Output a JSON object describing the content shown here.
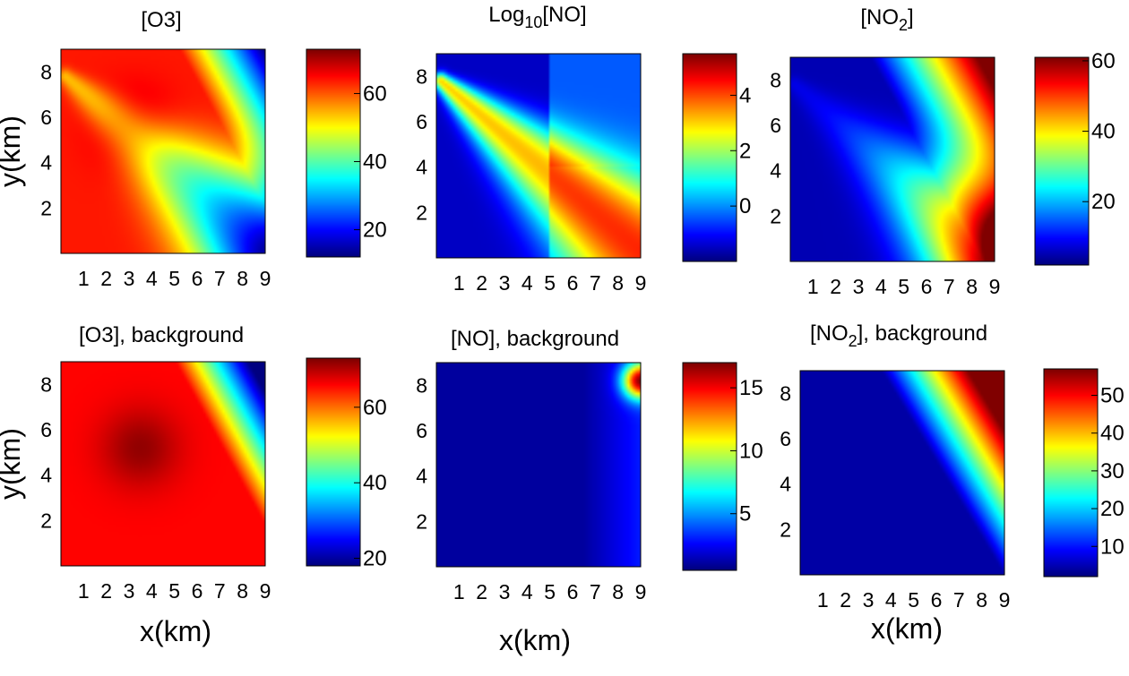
{
  "chart_data": [
    {
      "type": "heatmap",
      "title": "[O3]",
      "colormap": "jet",
      "xlim": [
        0,
        9
      ],
      "ylim": [
        0,
        9
      ],
      "xticks": [
        1,
        2,
        3,
        4,
        5,
        6,
        7,
        8,
        9
      ],
      "yticks": [
        2,
        4,
        6,
        8
      ],
      "xlabel": "",
      "ylabel": "y(km)",
      "clim": [
        12,
        73
      ],
      "cticks": [
        20,
        40,
        60
      ],
      "field": "o3"
    },
    {
      "type": "heatmap",
      "title_base": "Log",
      "title_sub": "10",
      "title_tail": "[NO]",
      "colormap": "jet",
      "xlim": [
        0,
        9
      ],
      "ylim": [
        0,
        9
      ],
      "xticks": [
        1,
        2,
        3,
        4,
        5,
        6,
        7,
        8,
        9
      ],
      "yticks": [
        2,
        4,
        6,
        8
      ],
      "xlabel": "",
      "ylabel": "",
      "clim": [
        -2,
        5.5
      ],
      "cticks": [
        0,
        2,
        4
      ],
      "field": "no_log"
    },
    {
      "type": "heatmap",
      "title_base": "[NO",
      "title_sub": "2",
      "title_tail": "]",
      "colormap": "jet",
      "xlim": [
        0,
        9
      ],
      "ylim": [
        0,
        9
      ],
      "xticks": [
        1,
        2,
        3,
        4,
        5,
        6,
        7,
        8,
        9
      ],
      "yticks": [
        2,
        4,
        6,
        8
      ],
      "xlabel": "",
      "ylabel": "",
      "clim": [
        2,
        61
      ],
      "cticks": [
        20,
        40,
        60
      ],
      "field": "no2"
    },
    {
      "type": "heatmap",
      "title": "[O3], background",
      "colormap": "jet",
      "xlim": [
        0,
        9
      ],
      "ylim": [
        0,
        9
      ],
      "xticks": [
        1,
        2,
        3,
        4,
        5,
        6,
        7,
        8,
        9
      ],
      "yticks": [
        2,
        4,
        6,
        8
      ],
      "xlabel": "x(km)",
      "ylabel": "y(km)",
      "clim": [
        18,
        73
      ],
      "cticks": [
        20,
        40,
        60
      ],
      "field": "o3_bg"
    },
    {
      "type": "heatmap",
      "title": "[NO], background",
      "colormap": "jet",
      "xlim": [
        0,
        9
      ],
      "ylim": [
        0,
        9
      ],
      "xticks": [
        1,
        2,
        3,
        4,
        5,
        6,
        7,
        8,
        9
      ],
      "yticks": [
        2,
        4,
        6,
        8
      ],
      "xlabel": "x(km)",
      "ylabel": "",
      "clim": [
        0.5,
        17
      ],
      "cticks": [
        5,
        10,
        15
      ],
      "field": "no_bg"
    },
    {
      "type": "heatmap",
      "title_base": "[NO",
      "title_sub": "2",
      "title_tail": "], background",
      "colormap": "jet",
      "xlim": [
        0,
        9
      ],
      "ylim": [
        0,
        9
      ],
      "xticks": [
        1,
        2,
        3,
        4,
        5,
        6,
        7,
        8,
        9
      ],
      "yticks": [
        2,
        4,
        6,
        8
      ],
      "xlabel": "x(km)",
      "ylabel": "",
      "clim": [
        2,
        57
      ],
      "cticks": [
        10,
        20,
        30,
        40,
        50
      ],
      "field": "no2_bg"
    }
  ]
}
